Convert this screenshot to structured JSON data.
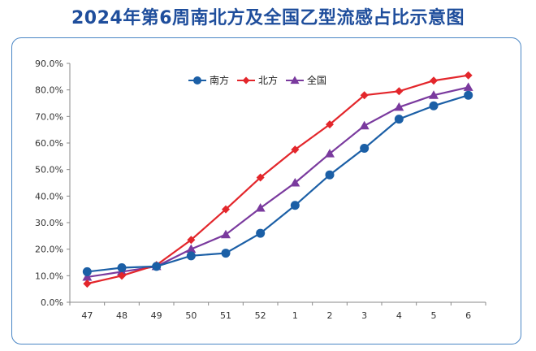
{
  "title": "2024年第6周南北方及全国乙型流感占比示意图",
  "colors": {
    "title": "#1f4e9c",
    "frame": "#4a86c5",
    "south": "#1b5fa6",
    "north": "#e3262b",
    "national": "#7a3a9e"
  },
  "chart_data": {
    "type": "line",
    "categories": [
      "47",
      "48",
      "49",
      "50",
      "51",
      "52",
      "1",
      "2",
      "3",
      "4",
      "5",
      "6"
    ],
    "ylim": [
      0,
      90
    ],
    "yticks": [
      "0.0%",
      "10.0%",
      "20.0%",
      "30.0%",
      "40.0%",
      "50.0%",
      "60.0%",
      "70.0%",
      "80.0%",
      "90.0%"
    ],
    "grid": false,
    "legend_position": "top-center",
    "series": [
      {
        "name": "南方",
        "color": "#1b5fa6",
        "marker": "circle",
        "values": [
          11.5,
          13.0,
          13.5,
          17.5,
          18.5,
          26.0,
          36.5,
          48.0,
          58.0,
          69.0,
          74.0,
          78.0
        ]
      },
      {
        "name": "北方",
        "color": "#e3262b",
        "marker": "diamond",
        "values": [
          7.0,
          10.0,
          14.0,
          23.5,
          35.0,
          47.0,
          57.5,
          67.0,
          78.0,
          79.5,
          83.5,
          85.5
        ]
      },
      {
        "name": "全国",
        "color": "#7a3a9e",
        "marker": "triangle",
        "values": [
          9.5,
          11.5,
          13.5,
          20.0,
          25.5,
          35.5,
          45.0,
          56.0,
          66.5,
          73.5,
          78.0,
          81.0
        ]
      }
    ]
  }
}
